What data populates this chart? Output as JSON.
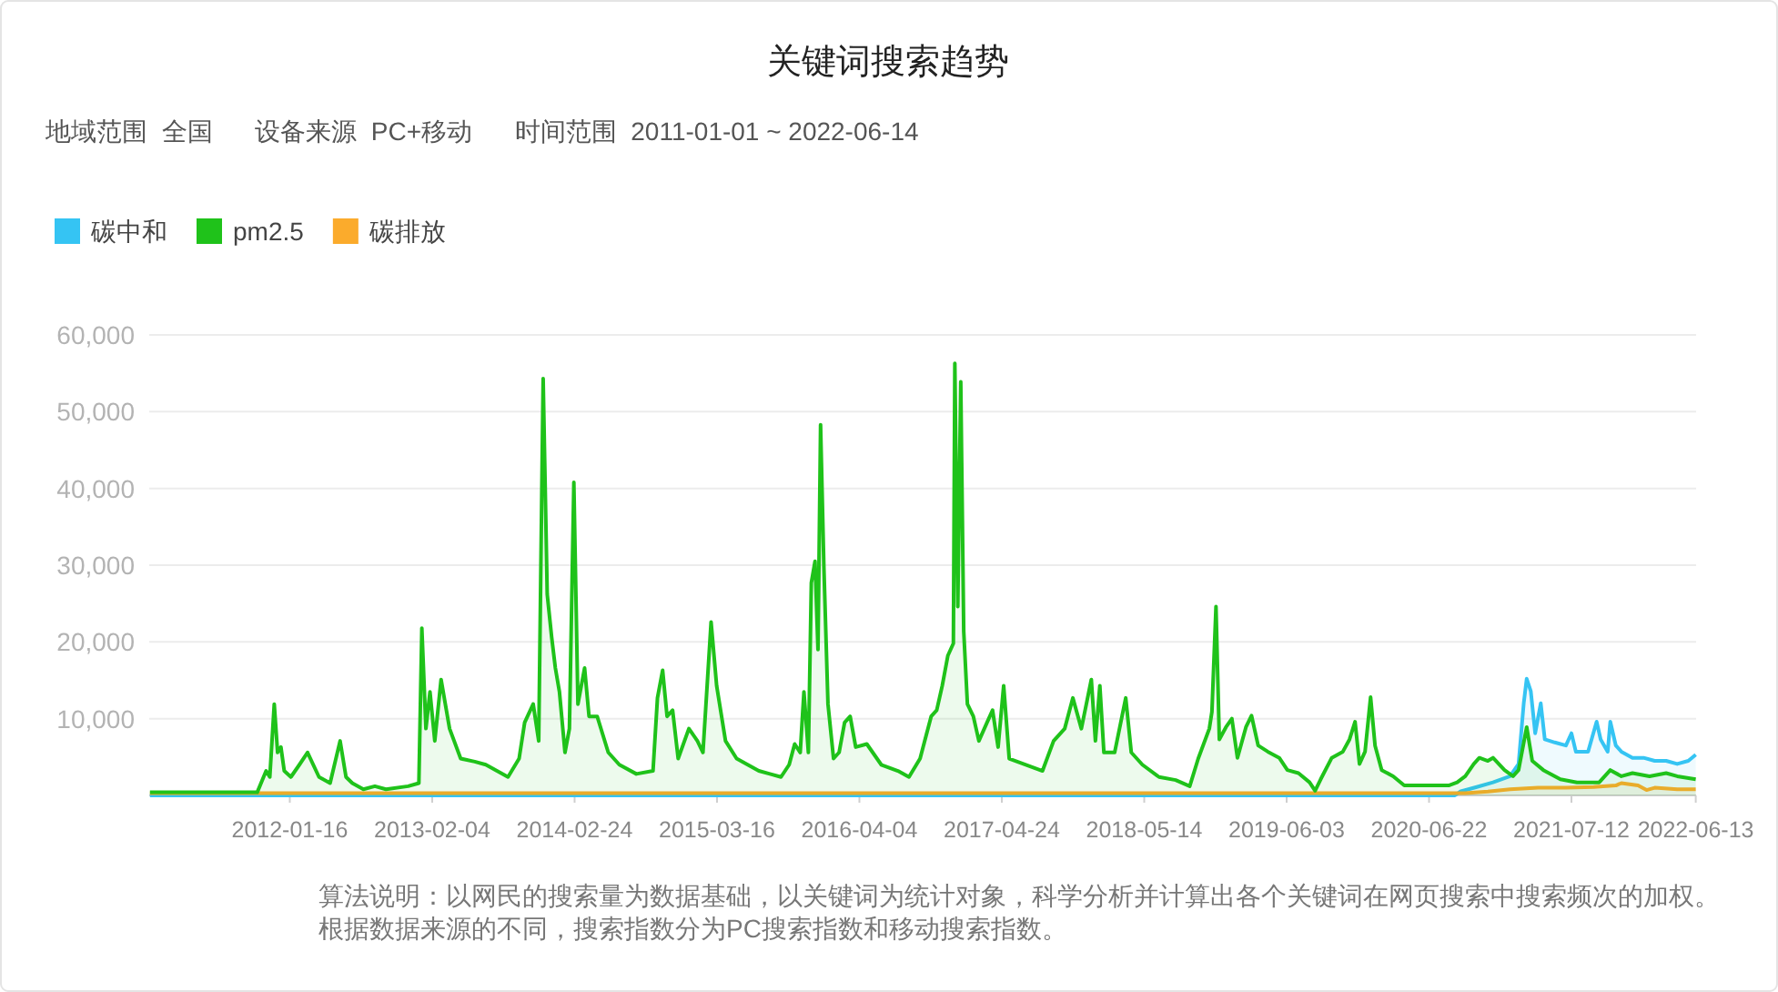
{
  "chart_data": {
    "type": "area",
    "title": "关键词搜索趋势",
    "subtitle": "地域范围  全国      设备来源  PC+移动      时间范围  2011-01-01 ~ 2022-06-14",
    "annotations": [
      "算法说明：以网民的搜索量为数据基础，以关键词为统计对象，科学分析并计算出各个关键词在网页搜索中搜索频次的加权。根据数据来源的不同，搜索指数分为PC搜索指数和移动搜索指数。"
    ],
    "xlim": [
      "2011-01-01",
      "2022-06-14"
    ],
    "xticks": [
      {
        "value": "2012-01-16",
        "label": "2012-01-16"
      },
      {
        "value": "2013-02-04",
        "label": "2013-02-04"
      },
      {
        "value": "2014-02-24",
        "label": "2014-02-24"
      },
      {
        "value": "2015-03-16",
        "label": "2015-03-16"
      },
      {
        "value": "2016-04-04",
        "label": "2016-04-04"
      },
      {
        "value": "2017-04-24",
        "label": "2017-04-24"
      },
      {
        "value": "2018-05-14",
        "label": "2018-05-14"
      },
      {
        "value": "2019-06-03",
        "label": "2019-06-03"
      },
      {
        "value": "2020-06-22",
        "label": "2020-06-22"
      },
      {
        "value": "2021-07-12",
        "label": "2021-07-12"
      },
      {
        "value": "2022-06-13",
        "label": "2022-06-13"
      }
    ],
    "ylim": [
      0,
      60000
    ],
    "yticks": [
      {
        "value": 0,
        "label": null
      },
      {
        "value": 10000,
        "label": "10,000"
      },
      {
        "value": 20000,
        "label": "20,000"
      },
      {
        "value": 30000,
        "label": "30,000"
      },
      {
        "value": 40000,
        "label": "40,000"
      },
      {
        "value": 50000,
        "label": "50,000"
      },
      {
        "value": 60000,
        "label": "60,000"
      }
    ],
    "grid": "y",
    "legend": "top left",
    "marker": "none",
    "line_style": "solid",
    "series": [
      {
        "name": "碳中和",
        "color": "#35c4f3",
        "x": [
          "2011-01-03",
          "2020-08-31",
          "2020-09-14",
          "2020-10-29",
          "2020-12-12",
          "2021-01-27",
          "2021-02-19",
          "2021-03-05",
          "2021-03-13",
          "2021-03-24",
          "2021-04-05",
          "2021-04-20",
          "2021-05-01",
          "2021-05-28",
          "2021-06-27",
          "2021-07-12",
          "2021-07-24",
          "2021-08-26",
          "2021-09-18",
          "2021-09-29",
          "2021-10-18",
          "2021-10-25",
          "2021-11-09",
          "2021-11-24",
          "2021-12-24",
          "2022-01-23",
          "2022-02-22",
          "2022-03-25",
          "2022-04-24",
          "2022-05-24",
          "2022-06-13"
        ],
        "values": [
          0,
          0,
          500,
          1100,
          1700,
          2500,
          4100,
          12000,
          15200,
          13600,
          8100,
          12000,
          7300,
          6900,
          6500,
          8100,
          5700,
          5700,
          9600,
          7300,
          5700,
          9600,
          6500,
          5700,
          4900,
          4900,
          4500,
          4500,
          4100,
          4500,
          5300
        ]
      },
      {
        "name": "pm2.5",
        "color": "#1fc21a",
        "x": [
          "2011-01-03",
          "2011-10-20",
          "2011-11-13",
          "2011-11-23",
          "2011-12-05",
          "2011-12-14",
          "2011-12-23",
          "2012-01-01",
          "2012-01-19",
          "2012-02-11",
          "2012-03-04",
          "2012-04-04",
          "2012-05-04",
          "2012-05-31",
          "2012-06-16",
          "2012-07-03",
          "2012-08-02",
          "2012-09-02",
          "2012-10-02",
          "2012-12-01",
          "2012-12-30",
          "2013-01-07",
          "2013-01-18",
          "2013-01-29",
          "2013-02-11",
          "2013-02-28",
          "2013-03-23",
          "2013-04-22",
          "2013-05-30",
          "2013-06-29",
          "2013-07-29",
          "2013-08-28",
          "2013-09-27",
          "2013-10-12",
          "2013-11-04",
          "2013-11-19",
          "2013-12-01",
          "2013-12-12",
          "2013-12-24",
          "2014-01-03",
          "2014-01-14",
          "2014-01-29",
          "2014-02-10",
          "2014-02-22",
          "2014-03-05",
          "2014-03-23",
          "2014-04-04",
          "2014-04-26",
          "2014-05-26",
          "2014-06-25",
          "2014-08-10",
          "2014-09-24",
          "2014-10-06",
          "2014-10-20",
          "2014-11-01",
          "2014-11-16",
          "2014-12-01",
          "2014-12-30",
          "2015-01-22",
          "2015-02-06",
          "2015-02-28",
          "2015-03-15",
          "2015-04-08",
          "2015-05-08",
          "2015-06-07",
          "2015-07-07",
          "2015-08-06",
          "2015-09-05",
          "2015-09-27",
          "2015-10-12",
          "2015-10-27",
          "2015-11-06",
          "2015-11-18",
          "2015-11-26",
          "2015-12-06",
          "2015-12-14",
          "2015-12-21",
          "2015-12-30",
          "2016-01-10",
          "2016-01-25",
          "2016-02-09",
          "2016-02-24",
          "2016-03-10",
          "2016-03-25",
          "2016-04-24",
          "2016-06-02",
          "2016-07-17",
          "2016-08-16",
          "2016-09-15",
          "2016-10-15",
          "2016-10-30",
          "2016-11-14",
          "2016-11-29",
          "2016-12-14",
          "2016-12-18",
          "2016-12-26",
          "2017-01-03",
          "2017-01-11",
          "2017-01-21",
          "2017-02-06",
          "2017-02-21",
          "2017-03-15",
          "2017-03-30",
          "2017-04-14",
          "2017-04-29",
          "2017-05-14",
          "2017-06-28",
          "2017-08-12",
          "2017-09-11",
          "2017-10-11",
          "2017-11-02",
          "2017-11-25",
          "2017-12-22",
          "2018-01-02",
          "2018-01-14",
          "2018-01-25",
          "2018-02-23",
          "2018-03-25",
          "2018-04-09",
          "2018-05-09",
          "2018-06-23",
          "2018-08-07",
          "2018-09-14",
          "2018-10-07",
          "2018-11-06",
          "2018-11-13",
          "2018-11-24",
          "2018-12-03",
          "2018-12-21",
          "2019-01-06",
          "2019-01-21",
          "2019-02-13",
          "2019-02-28",
          "2019-03-18",
          "2019-04-13",
          "2019-05-14",
          "2019-06-05",
          "2019-07-05",
          "2019-08-04",
          "2019-08-19",
          "2019-09-03",
          "2019-10-03",
          "2019-11-02",
          "2019-11-20",
          "2019-12-05",
          "2019-12-17",
          "2020-01-01",
          "2020-01-16",
          "2020-01-28",
          "2020-02-15",
          "2020-03-17",
          "2020-04-16",
          "2020-05-31",
          "2020-07-16",
          "2020-08-14",
          "2020-09-06",
          "2020-09-28",
          "2020-10-21",
          "2020-11-05",
          "2020-11-28",
          "2020-12-12",
          "2021-01-12",
          "2021-02-04",
          "2021-02-19",
          "2021-03-13",
          "2021-03-28",
          "2021-04-27",
          "2021-06-12",
          "2021-07-27",
          "2021-09-25",
          "2021-10-25",
          "2021-11-24",
          "2021-12-24",
          "2022-02-08",
          "2022-03-25",
          "2022-04-24",
          "2022-06-13"
        ],
        "values": [
          400,
          400,
          3200,
          2400,
          11900,
          5600,
          6300,
          3200,
          2400,
          4000,
          5600,
          2400,
          1600,
          7100,
          2400,
          1600,
          800,
          1200,
          800,
          1200,
          1600,
          21800,
          8700,
          13500,
          7100,
          15100,
          8700,
          4800,
          4400,
          4000,
          3200,
          2400,
          4800,
          9500,
          11900,
          7100,
          54300,
          26200,
          20600,
          16600,
          13500,
          5600,
          8700,
          40800,
          11900,
          16600,
          10300,
          10300,
          5600,
          4000,
          2800,
          3200,
          12700,
          16300,
          10300,
          11100,
          4800,
          8700,
          7100,
          5600,
          22600,
          14300,
          7100,
          4800,
          4000,
          3200,
          2800,
          2400,
          4000,
          6700,
          5600,
          13500,
          5600,
          27700,
          30500,
          19000,
          48300,
          29700,
          11900,
          4800,
          5600,
          9500,
          10300,
          6300,
          6700,
          4000,
          3200,
          2400,
          4800,
          10300,
          11100,
          14300,
          18200,
          19800,
          56300,
          24600,
          53900,
          21400,
          11900,
          10300,
          7100,
          9500,
          11100,
          6300,
          14300,
          4800,
          4000,
          3200,
          7100,
          8700,
          12700,
          8700,
          15100,
          7100,
          14300,
          5600,
          5600,
          12700,
          5600,
          4000,
          2400,
          2000,
          1200,
          4800,
          8700,
          10900,
          24600,
          7300,
          8900,
          10000,
          4900,
          8900,
          10400,
          6500,
          5700,
          4900,
          3300,
          2900,
          1700,
          600,
          2100,
          4900,
          5700,
          7300,
          9600,
          4100,
          5700,
          12800,
          6500,
          3300,
          2500,
          1300,
          1300,
          1300,
          1300,
          1700,
          2500,
          4100,
          4900,
          4500,
          4900,
          3300,
          2500,
          3300,
          8900,
          4500,
          3300,
          2100,
          1700,
          1700,
          3300,
          2500,
          2900,
          2500,
          2900,
          2500,
          2100
        ]
      },
      {
        "name": "碳排放",
        "color": "#fbab2c",
        "x": [
          "2011-01-03",
          "2020-09-06",
          "2020-09-28",
          "2020-11-28",
          "2021-01-27",
          "2021-04-13",
          "2021-06-27",
          "2021-09-10",
          "2021-11-09",
          "2021-11-24",
          "2022-01-08",
          "2022-01-31",
          "2022-02-22",
          "2022-04-24",
          "2022-06-13"
        ],
        "values": [
          300,
          300,
          300,
          500,
          800,
          1000,
          1000,
          1100,
          1300,
          1600,
          1300,
          700,
          1000,
          800,
          800
        ]
      }
    ]
  }
}
